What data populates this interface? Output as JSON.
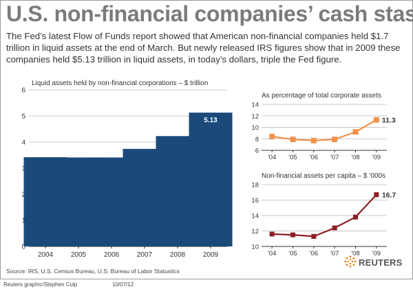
{
  "header": {
    "title": "U.S. non-financial companies’ cash stash",
    "subtitle": "The Fed’s latest Flow of Funds report showed that American non-financial companies held $1.7 trillion in liquid assets at the end of March. But newly released IRS figures show that in 2009 these companies held $5.13 trillion in liquid assets, in today’s dollars, triple the Fed figure."
  },
  "footer": {
    "source": "Source:  IRS, U.S. Census Bureau, U.S. Bureau of Labor Statustics",
    "credit": "Reuters graphic/Stephen Culp",
    "date": "10/07/12",
    "brand": "REUTERS"
  },
  "colors": {
    "bar": "#1b4a7a",
    "orange": "#f0924a",
    "maroon": "#8c1d24",
    "grid": "#c8c8c8"
  },
  "chart_data": [
    {
      "type": "bar",
      "title": "Liquid assets held by non-financial corporations – $ trillion",
      "categories": [
        "2004",
        "2005",
        "2006",
        "2007",
        "2008",
        "2009"
      ],
      "values": [
        3.42,
        3.41,
        3.41,
        3.74,
        4.23,
        5.13
      ],
      "ylim": [
        0,
        6
      ],
      "yticks": [
        "0",
        "1",
        "2",
        "3",
        "4",
        "5",
        "6"
      ],
      "data_label": "5.13"
    },
    {
      "type": "line",
      "title": "As percentage of total corporate assets",
      "categories": [
        "'04",
        "'05",
        "'06",
        "'07",
        "'08",
        "'09"
      ],
      "values": [
        8.4,
        7.9,
        7.7,
        7.9,
        9.2,
        11.3
      ],
      "ylim": [
        6,
        14
      ],
      "yticks": [
        "6",
        "8",
        "10",
        "12",
        "14"
      ],
      "data_label": "11.3"
    },
    {
      "type": "line",
      "title": "Non-financial assets per capita – $ ‘000s",
      "categories": [
        "'04",
        "'05",
        "'06",
        "'07",
        "'08",
        "'09"
      ],
      "values": [
        11.6,
        11.5,
        11.3,
        12.4,
        13.8,
        16.7
      ],
      "ylim": [
        10,
        18
      ],
      "yticks": [
        "10",
        "12",
        "14",
        "16",
        "18"
      ],
      "data_label": "16.7"
    }
  ]
}
